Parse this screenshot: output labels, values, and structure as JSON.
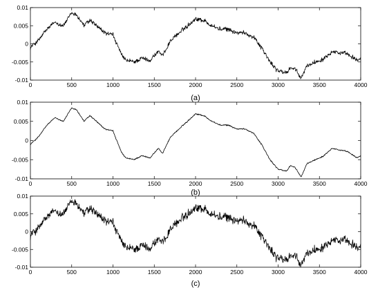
{
  "chart_data": [
    {
      "type": "line",
      "label": "(a)",
      "xlim": [
        0,
        4000
      ],
      "ylim": [
        -0.01,
        0.01
      ],
      "xticks": [
        0,
        500,
        1000,
        1500,
        2000,
        2500,
        3000,
        3500,
        4000
      ],
      "yticks": [
        -0.01,
        -0.005,
        0,
        0.005,
        0.01
      ],
      "xtick_labels": [
        "0",
        "500",
        "1000",
        "1500",
        "2000",
        "2500",
        "3000",
        "3500",
        "4000"
      ],
      "ytick_labels": [
        "-0.01",
        "-0.005",
        "0",
        "0.005",
        "0.01"
      ],
      "noise": 0.0009,
      "series": [
        {
          "x": [
            0,
            100,
            200,
            300,
            400,
            500,
            560,
            650,
            720,
            800,
            900,
            1000,
            1100,
            1150,
            1250,
            1350,
            1450,
            1550,
            1600,
            1650,
            1700,
            1800,
            1900,
            2000,
            2100,
            2200,
            2300,
            2400,
            2500,
            2600,
            2700,
            2800,
            2900,
            3000,
            3100,
            3150,
            3200,
            3280,
            3350,
            3450,
            3550,
            3650,
            3750,
            3850,
            3950,
            4000
          ],
          "y": [
            -0.001,
            0.001,
            0.004,
            0.006,
            0.005,
            0.0085,
            0.008,
            0.005,
            0.0065,
            0.005,
            0.003,
            0.0025,
            -0.003,
            -0.0045,
            -0.005,
            -0.004,
            -0.0045,
            -0.002,
            -0.0035,
            -0.001,
            0.001,
            0.003,
            0.005,
            0.007,
            0.0065,
            0.005,
            0.004,
            0.004,
            0.003,
            0.003,
            0.002,
            -0.001,
            -0.005,
            -0.0075,
            -0.008,
            -0.0065,
            -0.007,
            -0.0095,
            -0.006,
            -0.005,
            -0.004,
            -0.002,
            -0.0025,
            -0.003,
            -0.0045,
            -0.004
          ]
        }
      ]
    },
    {
      "type": "line",
      "label": "(b)",
      "xlim": [
        0,
        4000
      ],
      "ylim": [
        -0.01,
        0.01
      ],
      "xticks": [
        0,
        500,
        1000,
        1500,
        2000,
        2500,
        3000,
        3500,
        4000
      ],
      "yticks": [
        -0.01,
        -0.005,
        0,
        0.005,
        0.01
      ],
      "xtick_labels": [
        "0",
        "500",
        "1000",
        "1500",
        "2000",
        "2500",
        "3000",
        "3500",
        "4000"
      ],
      "ytick_labels": [
        "-0.01",
        "-0.005",
        "0",
        "0.005",
        "0.01"
      ],
      "noise": 0.00025,
      "series": [
        {
          "x": [
            0,
            100,
            200,
            300,
            400,
            500,
            560,
            650,
            720,
            800,
            900,
            1000,
            1100,
            1150,
            1250,
            1350,
            1450,
            1550,
            1600,
            1650,
            1700,
            1800,
            1900,
            2000,
            2100,
            2200,
            2300,
            2400,
            2500,
            2600,
            2700,
            2800,
            2900,
            3000,
            3100,
            3150,
            3200,
            3280,
            3350,
            3450,
            3550,
            3650,
            3750,
            3850,
            3950,
            4000
          ],
          "y": [
            -0.001,
            0.001,
            0.004,
            0.006,
            0.005,
            0.0085,
            0.008,
            0.005,
            0.0065,
            0.005,
            0.003,
            0.0025,
            -0.003,
            -0.0045,
            -0.005,
            -0.004,
            -0.0045,
            -0.002,
            -0.0035,
            -0.001,
            0.001,
            0.003,
            0.005,
            0.007,
            0.0065,
            0.005,
            0.004,
            0.004,
            0.003,
            0.003,
            0.002,
            -0.001,
            -0.005,
            -0.0075,
            -0.008,
            -0.0065,
            -0.007,
            -0.0095,
            -0.006,
            -0.005,
            -0.004,
            -0.002,
            -0.0025,
            -0.003,
            -0.0045,
            -0.004
          ]
        }
      ]
    },
    {
      "type": "line",
      "label": "(c)",
      "xlim": [
        0,
        4000
      ],
      "ylim": [
        -0.01,
        0.01
      ],
      "xticks": [
        0,
        500,
        1000,
        1500,
        2000,
        2500,
        3000,
        3500,
        4000
      ],
      "yticks": [
        -0.01,
        -0.005,
        0,
        0.005,
        0.01
      ],
      "xtick_labels": [
        "0",
        "500",
        "1000",
        "1500",
        "2000",
        "2500",
        "3000",
        "3500",
        "4000"
      ],
      "ytick_labels": [
        "-0.01",
        "-0.005",
        "0",
        "0.005",
        "0.01"
      ],
      "noise": 0.0018,
      "series": [
        {
          "x": [
            0,
            100,
            200,
            300,
            400,
            500,
            560,
            650,
            720,
            800,
            900,
            1000,
            1100,
            1150,
            1250,
            1350,
            1450,
            1550,
            1600,
            1650,
            1700,
            1800,
            1900,
            2000,
            2100,
            2200,
            2300,
            2400,
            2500,
            2600,
            2700,
            2800,
            2900,
            3000,
            3100,
            3150,
            3200,
            3280,
            3350,
            3450,
            3550,
            3650,
            3750,
            3850,
            3950,
            4000
          ],
          "y": [
            -0.001,
            0.001,
            0.004,
            0.006,
            0.005,
            0.0085,
            0.008,
            0.005,
            0.0065,
            0.005,
            0.003,
            0.0025,
            -0.003,
            -0.0045,
            -0.005,
            -0.004,
            -0.0045,
            -0.002,
            -0.0035,
            -0.001,
            0.001,
            0.003,
            0.005,
            0.007,
            0.0065,
            0.005,
            0.004,
            0.004,
            0.003,
            0.003,
            0.002,
            -0.001,
            -0.005,
            -0.0075,
            -0.008,
            -0.0065,
            -0.007,
            -0.0095,
            -0.006,
            -0.005,
            -0.004,
            -0.002,
            -0.0025,
            -0.003,
            -0.0045,
            -0.004
          ]
        }
      ]
    }
  ]
}
